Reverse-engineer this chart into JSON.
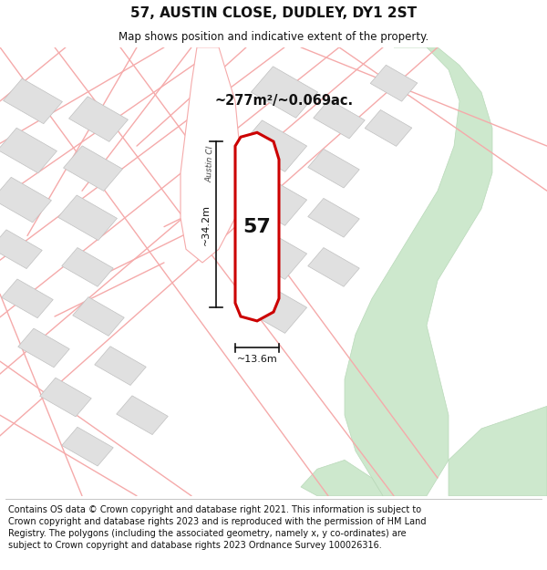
{
  "title": "57, AUSTIN CLOSE, DUDLEY, DY1 2ST",
  "subtitle": "Map shows position and indicative extent of the property.",
  "footer": "Contains OS data © Crown copyright and database right 2021. This information is subject to Crown copyright and database rights 2023 and is reproduced with the permission of HM Land Registry. The polygons (including the associated geometry, namely x, y co-ordinates) are subject to Crown copyright and database rights 2023 Ordnance Survey 100026316.",
  "area_text": "~277m²/~0.069ac.",
  "label_57": "57",
  "dim_height": "~34.2m",
  "dim_width": "~13.6m",
  "street_label": "Austin Cl",
  "bg_color": "#ffffff",
  "map_bg": "#f2f2f2",
  "building_fill": "#e0e0e0",
  "building_stroke": "#c0c0c0",
  "road_stroke": "#f5aaaa",
  "road_fill": "#ffffff",
  "green_fill": "#cde8cd",
  "green_stroke": "#b8d8b8",
  "highlight_fill": "#ffffff",
  "highlight_stroke": "#cc0000",
  "dim_color": "#111111",
  "text_color": "#111111",
  "title_fontsize": 11,
  "subtitle_fontsize": 8.5,
  "footer_fontsize": 7.0
}
